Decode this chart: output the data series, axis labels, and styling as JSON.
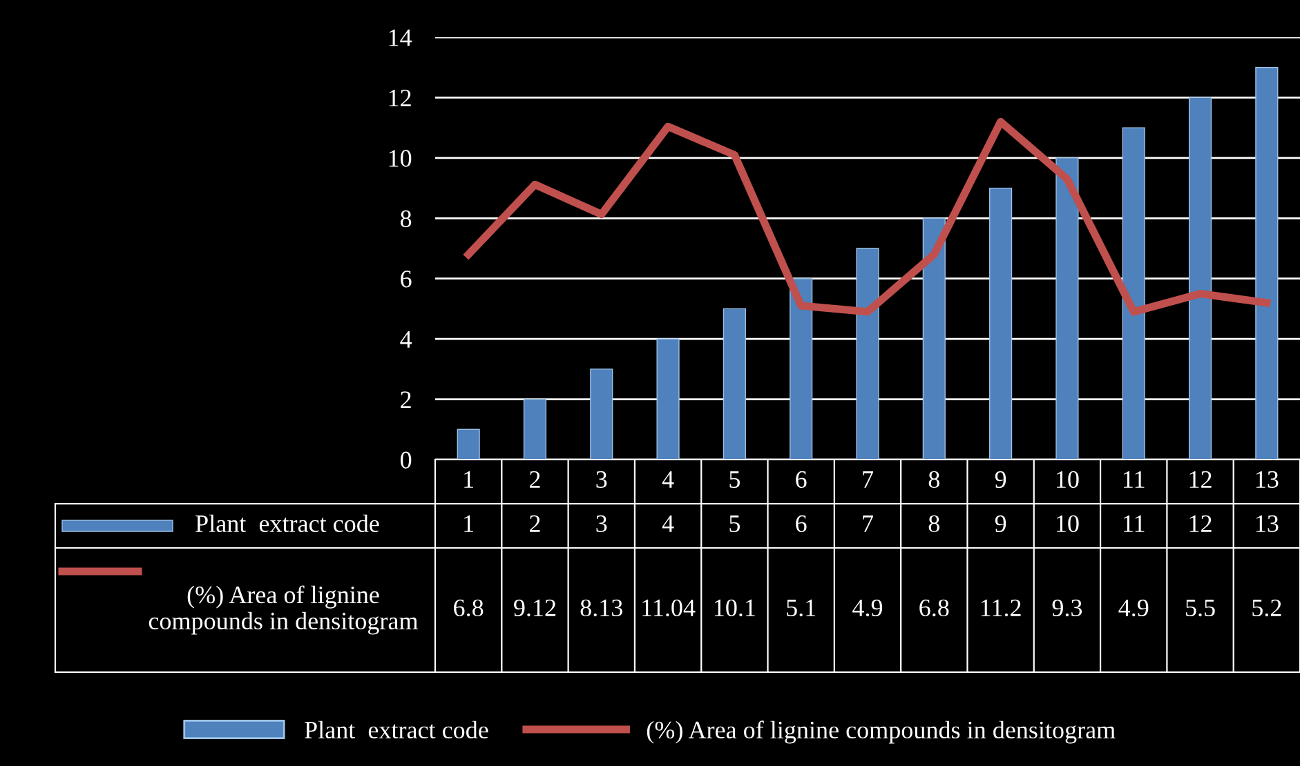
{
  "chart_data": {
    "type": "bar",
    "categories": [
      "1",
      "2",
      "3",
      "4",
      "5",
      "6",
      "7",
      "8",
      "9",
      "10",
      "11",
      "12",
      "13"
    ],
    "series": [
      {
        "name": "Plant  extract code",
        "color": "#4f81bd",
        "values": [
          1,
          2,
          3,
          4,
          5,
          6,
          7,
          8,
          9,
          10,
          11,
          12,
          13
        ]
      },
      {
        "name": "(%) Area of lignine compounds in densitogram",
        "type": "line",
        "color": "#c0504d",
        "values": [
          6.8,
          9.12,
          8.13,
          11.04,
          10.1,
          5.1,
          4.9,
          6.8,
          11.2,
          9.3,
          4.9,
          5.5,
          5.2
        ]
      }
    ],
    "ylim": [
      0,
      14
    ],
    "yticks": [
      0,
      2,
      4,
      6,
      8,
      10,
      12,
      14
    ],
    "grid": "y",
    "legend": "bottom",
    "data_labels": true,
    "marker": "none",
    "line_style": "solid"
  }
}
